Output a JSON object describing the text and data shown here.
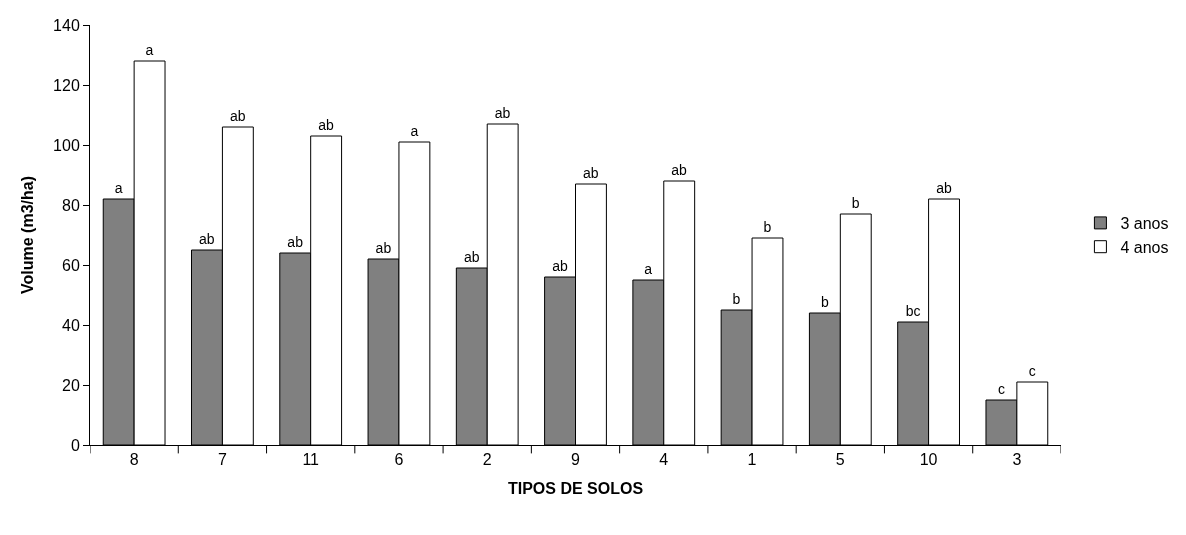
{
  "chart_data": {
    "type": "bar",
    "xlabel": "TIPOS DE SOLOS",
    "ylabel": "Volume (m3/ha)",
    "categories": [
      "8",
      "7",
      "11",
      "6",
      "2",
      "9",
      "4",
      "1",
      "5",
      "10",
      "3"
    ],
    "series": [
      {
        "name": "3 anos",
        "color": "#808080",
        "values": [
          82,
          65,
          64,
          62,
          59,
          56,
          55,
          45,
          44,
          41,
          15
        ],
        "value_labels": [
          "a",
          "ab",
          "ab",
          "ab",
          "ab",
          "ab",
          "a",
          "b",
          "b",
          "bc",
          "c"
        ]
      },
      {
        "name": "4 anos",
        "color": "#ffffff",
        "values": [
          128,
          106,
          103,
          101,
          107,
          87,
          88,
          69,
          77,
          82,
          21
        ],
        "value_labels": [
          "a",
          "ab",
          "ab",
          "a",
          "ab",
          "ab",
          "ab",
          "b",
          "b",
          "ab",
          "c"
        ]
      }
    ],
    "ylim": [
      0,
      140
    ],
    "yticks": [
      0,
      20,
      40,
      60,
      80,
      100,
      120,
      140
    ],
    "legend": "right"
  }
}
